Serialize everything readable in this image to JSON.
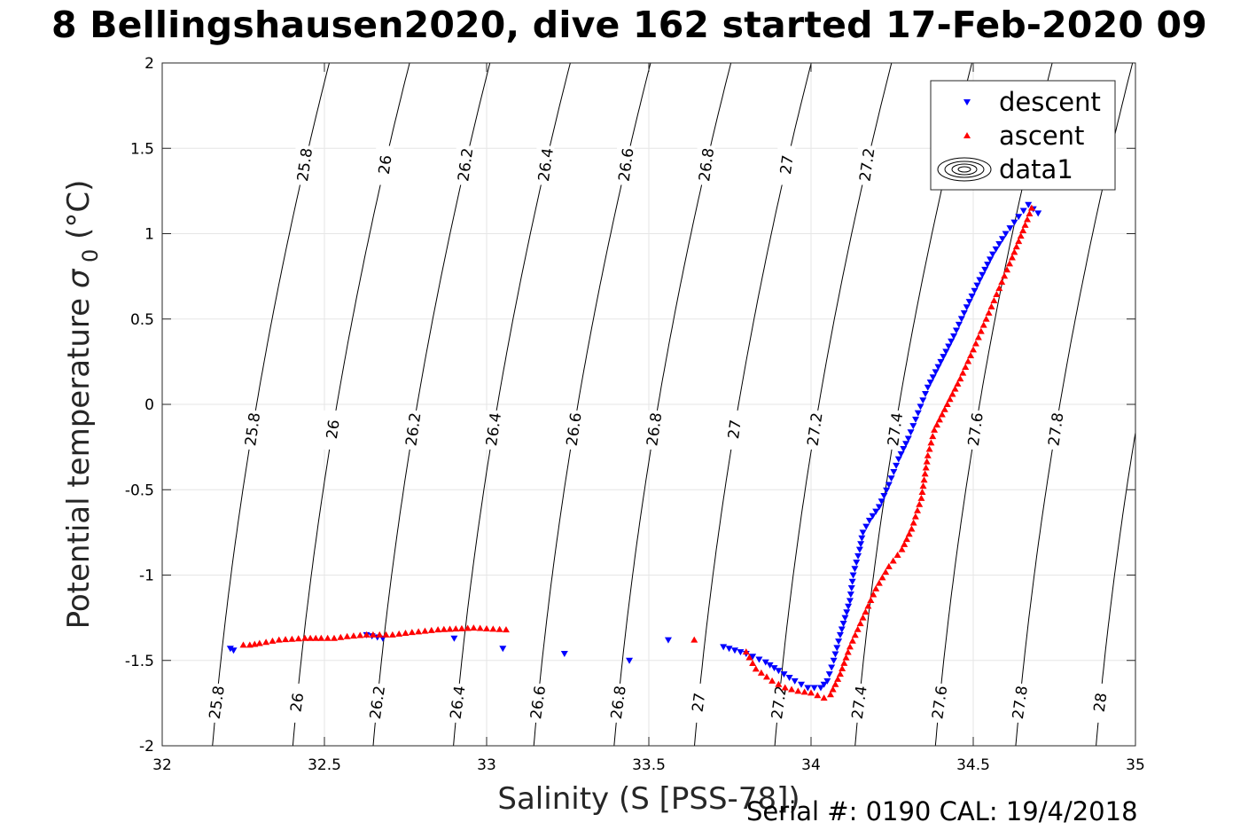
{
  "title": "8 Bellingshausen2020, dive 162 started 17-Feb-2020 09",
  "footer": "Serial #: 0190  CAL: 19/4/2018",
  "chart_data": {
    "type": "scatter",
    "xlabel": "Salinity (S [PSS-78])",
    "ylabel": "Potential temperature σ₀ (°C)",
    "xlim": [
      32,
      35
    ],
    "ylim": [
      -2,
      2
    ],
    "xticks": [
      32,
      32.5,
      33,
      33.5,
      34,
      34.5,
      35
    ],
    "yticks": [
      -2,
      -1.5,
      -1,
      -0.5,
      0,
      0.5,
      1,
      1.5,
      2
    ],
    "grid": true,
    "legend_position": "top-right",
    "legend": [
      "descent",
      "ascent",
      "data1"
    ],
    "contour_levels": [
      25.8,
      26,
      26.2,
      26.4,
      26.6,
      26.8,
      27,
      27.2,
      27.4,
      27.6,
      27.8,
      28
    ],
    "series": [
      {
        "name": "descent",
        "color": "#0000ff",
        "marker": "triangle-down",
        "x": [
          32.21,
          32.22,
          32.63,
          32.68,
          32.9,
          33.05,
          33.24,
          33.44,
          33.56,
          33.73,
          33.8,
          33.86,
          33.9,
          33.95,
          33.99,
          34.03,
          34.05,
          34.07,
          34.09,
          34.12,
          34.13,
          34.15,
          34.16,
          34.18,
          34.21,
          34.24,
          34.27,
          34.3,
          34.33,
          34.36,
          34.4,
          34.44,
          34.48,
          34.52,
          34.56,
          34.6,
          34.64,
          34.67,
          34.7
        ],
        "y": [
          -1.43,
          -1.44,
          -1.35,
          -1.37,
          -1.37,
          -1.43,
          -1.46,
          -1.5,
          -1.38,
          -1.42,
          -1.46,
          -1.51,
          -1.56,
          -1.62,
          -1.66,
          -1.66,
          -1.62,
          -1.5,
          -1.35,
          -1.15,
          -1.0,
          -0.85,
          -0.75,
          -0.68,
          -0.6,
          -0.47,
          -0.32,
          -0.2,
          -0.05,
          0.1,
          0.25,
          0.4,
          0.57,
          0.73,
          0.88,
          1.0,
          1.1,
          1.17,
          1.12
        ]
      },
      {
        "name": "ascent",
        "color": "#ff0000",
        "marker": "triangle-up",
        "x": [
          32.25,
          32.27,
          32.3,
          32.36,
          32.44,
          32.49,
          32.53,
          32.57,
          32.63,
          32.71,
          32.75,
          32.85,
          32.96,
          33.06,
          33.64,
          33.8,
          33.83,
          33.88,
          33.92,
          33.96,
          34.0,
          34.04,
          34.06,
          34.09,
          34.12,
          34.16,
          34.2,
          34.24,
          34.28,
          34.31,
          34.34,
          34.36,
          34.38,
          34.42,
          34.46,
          34.5,
          34.54,
          34.58,
          34.62,
          34.66,
          34.68
        ],
        "y": [
          -1.41,
          -1.41,
          -1.4,
          -1.38,
          -1.37,
          -1.37,
          -1.37,
          -1.36,
          -1.35,
          -1.35,
          -1.34,
          -1.32,
          -1.31,
          -1.32,
          -1.38,
          -1.45,
          -1.55,
          -1.62,
          -1.66,
          -1.68,
          -1.69,
          -1.72,
          -1.7,
          -1.58,
          -1.42,
          -1.25,
          -1.08,
          -0.95,
          -0.85,
          -0.73,
          -0.55,
          -0.3,
          -0.15,
          0.0,
          0.15,
          0.32,
          0.5,
          0.68,
          0.86,
          1.05,
          1.15
        ]
      }
    ]
  }
}
